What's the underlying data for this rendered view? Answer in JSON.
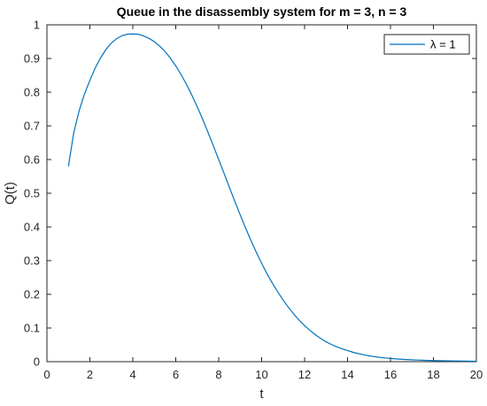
{
  "chart_data": {
    "type": "line",
    "title": "Queue in the disassembly system for m = 3, n = 3",
    "xlabel": "t",
    "ylabel": "Q(t)",
    "xlim": [
      0,
      20
    ],
    "ylim": [
      0,
      1
    ],
    "xticks": [
      0,
      2,
      4,
      6,
      8,
      10,
      12,
      14,
      16,
      18,
      20
    ],
    "yticks": [
      0,
      0.1,
      0.2,
      0.3,
      0.4,
      0.5,
      0.6,
      0.7,
      0.8,
      0.9,
      1
    ],
    "grid": false,
    "legend_position": "top-right",
    "series": [
      {
        "name": "λ = 1",
        "color": "#0072BD",
        "x": [
          1,
          1.25,
          1.5,
          1.75,
          2,
          2.25,
          2.5,
          2.75,
          3,
          3.25,
          3.5,
          3.75,
          4,
          4.25,
          4.5,
          4.75,
          5,
          5.25,
          5.5,
          5.75,
          6,
          6.25,
          6.5,
          6.75,
          7,
          7.25,
          7.5,
          7.75,
          8,
          8.25,
          8.5,
          8.75,
          9,
          9.25,
          9.5,
          9.75,
          10,
          10.25,
          10.5,
          10.75,
          11,
          11.25,
          11.5,
          11.75,
          12,
          12.25,
          12.5,
          12.75,
          13,
          13.25,
          13.5,
          13.75,
          14,
          14.25,
          14.5,
          14.75,
          15,
          15.25,
          15.5,
          15.75,
          16,
          16.25,
          16.5,
          16.75,
          17,
          17.25,
          17.5,
          17.75,
          18,
          18.25,
          18.5,
          18.75,
          19,
          19.25,
          19.5,
          19.75,
          20
        ],
        "y": [
          0.58,
          0.68,
          0.745,
          0.795,
          0.835,
          0.872,
          0.902,
          0.927,
          0.946,
          0.959,
          0.968,
          0.972,
          0.973,
          0.972,
          0.967,
          0.96,
          0.95,
          0.937,
          0.921,
          0.901,
          0.878,
          0.852,
          0.823,
          0.791,
          0.757,
          0.72,
          0.681,
          0.641,
          0.6,
          0.559,
          0.517,
          0.476,
          0.436,
          0.397,
          0.36,
          0.325,
          0.292,
          0.261,
          0.233,
          0.207,
          0.183,
          0.161,
          0.141,
          0.123,
          0.107,
          0.093,
          0.08,
          0.069,
          0.059,
          0.051,
          0.044,
          0.038,
          0.033,
          0.028,
          0.024,
          0.0205,
          0.0175,
          0.015,
          0.0128,
          0.011,
          0.0095,
          0.0083,
          0.0072,
          0.0063,
          0.0055,
          0.0048,
          0.0042,
          0.0037,
          0.0033,
          0.0029,
          0.0026,
          0.0023,
          0.0021,
          0.0019,
          0.0017,
          0.0015,
          0.0014
        ]
      }
    ]
  }
}
